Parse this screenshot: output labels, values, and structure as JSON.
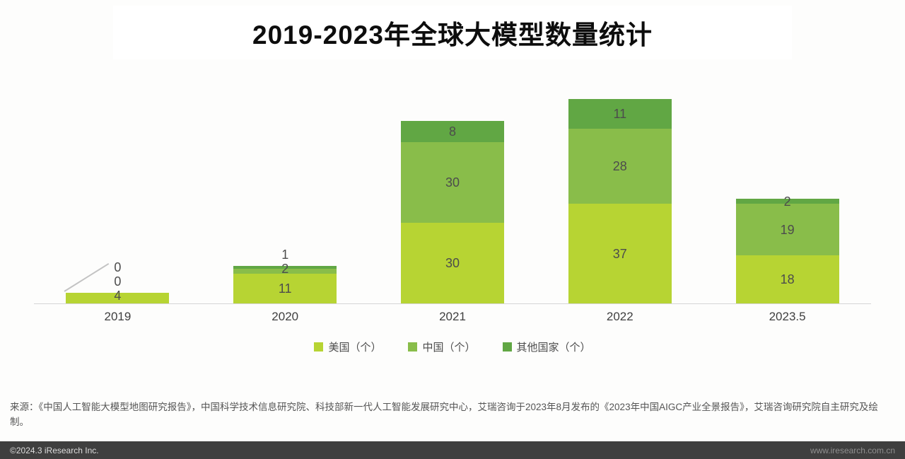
{
  "title": {
    "text": "2019-2023年全球大模型数量统计"
  },
  "source": {
    "text": "来源：《中国人工智能大模型地图研究报告》，中国科学技术信息研究院、科技部新一代人工智能发展研究中心，艾瑞咨询于2023年8月发布的《2023年中国AIGC产业全景报告》，艾瑞咨询研究院自主研究及绘制。"
  },
  "footer": {
    "copyright": "©2024.3 iResearch Inc.",
    "website": "www.iresearch.com.cn"
  },
  "chart_data": {
    "type": "bar",
    "stacked": true,
    "title": "2019-2023年全球大模型数量统计",
    "categories": [
      "2019",
      "2020",
      "2021",
      "2022",
      "2023.5"
    ],
    "series": [
      {
        "name": "美国（个）",
        "color": "#b7d433",
        "values": [
          4,
          11,
          30,
          37,
          18
        ]
      },
      {
        "name": "中国（个）",
        "color": "#89bd4a",
        "values": [
          0,
          2,
          30,
          28,
          19
        ]
      },
      {
        "name": "其他国家（个）",
        "color": "#61a744",
        "values": [
          0,
          1,
          8,
          11,
          2
        ]
      }
    ],
    "ylim": [
      0,
      80
    ],
    "grid": false,
    "legend_position": "bottom",
    "value_labels": true,
    "axis_line_color": "#d6d6d6",
    "label_color": "#4c4c4c"
  }
}
